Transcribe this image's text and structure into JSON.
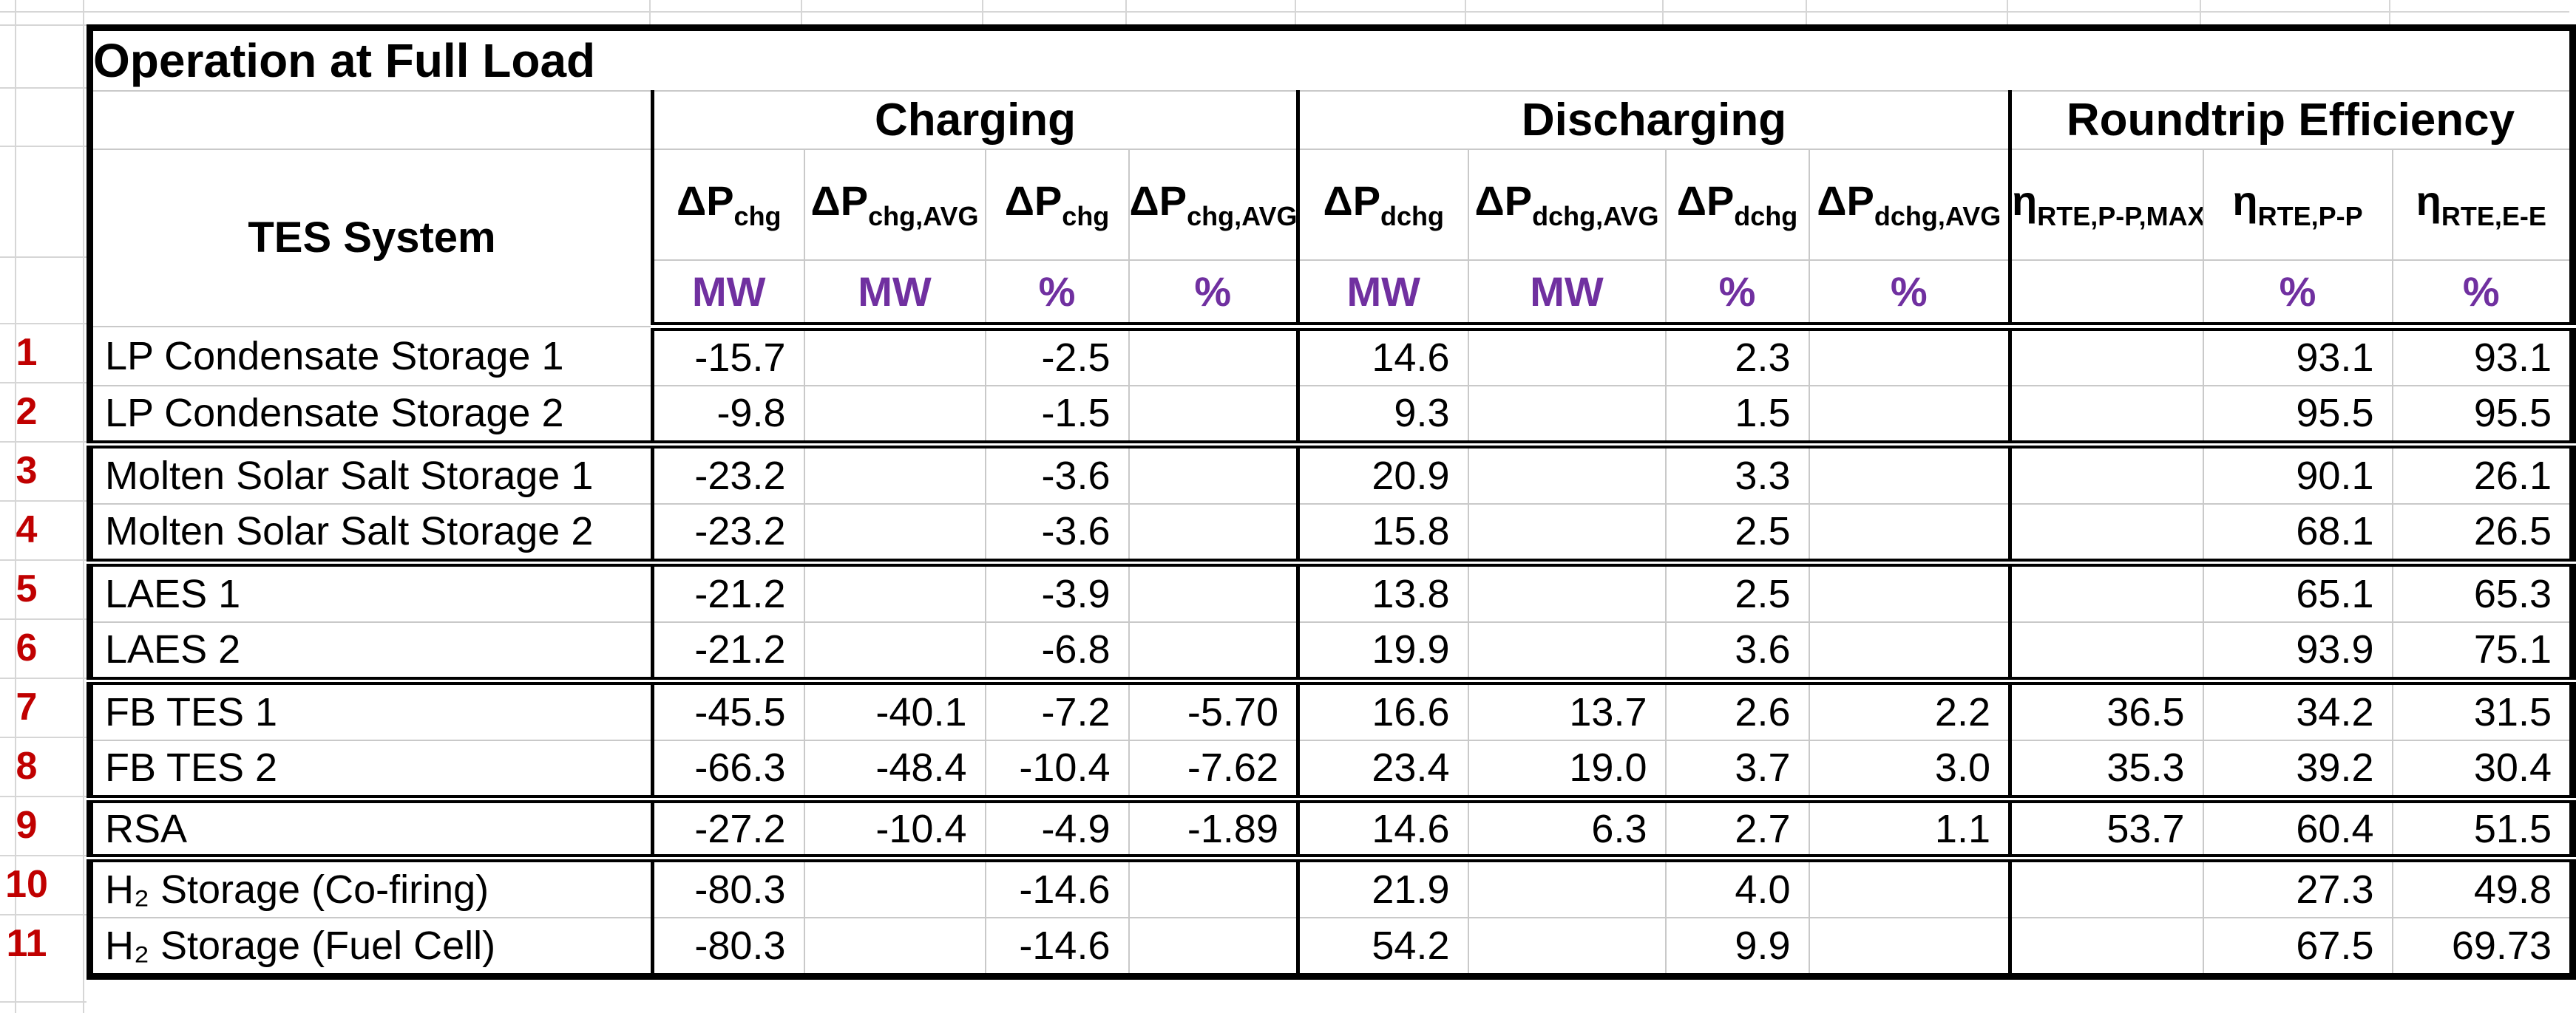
{
  "title": "Operation at Full Load",
  "colors": {
    "title_highlight": "#FFFF00",
    "unit_text": "#7030A0",
    "row_number_text": "#C00000",
    "empty_cell_fill": "#DCE8F5",
    "border_heavy": "#000000",
    "gridline": "#D6D6D6"
  },
  "table": {
    "corner_label": "TES System",
    "groups": [
      {
        "label": "Charging"
      },
      {
        "label": "Discharging"
      },
      {
        "label": "Roundtrip Efficiency"
      }
    ],
    "columns": [
      {
        "base": "ΔP",
        "sub": "chg",
        "unit": "MW"
      },
      {
        "base": "ΔP",
        "sub": "chg,AVG",
        "unit": "MW"
      },
      {
        "base": "ΔP",
        "sub": "chg",
        "unit": "%"
      },
      {
        "base": "ΔP",
        "sub": "chg,AVG",
        "unit": "%"
      },
      {
        "base": "ΔP",
        "sub": "dchg",
        "unit": "MW"
      },
      {
        "base": "ΔP",
        "sub": "dchg,AVG",
        "unit": "MW"
      },
      {
        "base": "ΔP",
        "sub": "dchg",
        "unit": "%"
      },
      {
        "base": "ΔP",
        "sub": "dchg,AVG",
        "unit": "%"
      },
      {
        "base": "η",
        "sub": "RTE,P-P,MAX",
        "unit": ""
      },
      {
        "base": "η",
        "sub": "RTE,P-P",
        "unit": "%"
      },
      {
        "base": "η",
        "sub": "RTE,E-E",
        "unit": "%"
      }
    ],
    "rows": [
      {
        "num": "1",
        "name": "LP Condensate Storage 1",
        "values": [
          "-15.7",
          "",
          "-2.5",
          "",
          "14.6",
          "",
          "2.3",
          "",
          "",
          "93.1",
          "93.1"
        ],
        "group_end": false
      },
      {
        "num": "2",
        "name": "LP Condensate Storage 2",
        "values": [
          "-9.8",
          "",
          "-1.5",
          "",
          "9.3",
          "",
          "1.5",
          "",
          "",
          "95.5",
          "95.5"
        ],
        "group_end": true
      },
      {
        "num": "3",
        "name": "Molten Solar Salt Storage 1",
        "values": [
          "-23.2",
          "",
          "-3.6",
          "",
          "20.9",
          "",
          "3.3",
          "",
          "",
          "90.1",
          "26.1"
        ],
        "group_end": false
      },
      {
        "num": "4",
        "name": "Molten Solar Salt Storage 2",
        "values": [
          "-23.2",
          "",
          "-3.6",
          "",
          "15.8",
          "",
          "2.5",
          "",
          "",
          "68.1",
          "26.5"
        ],
        "group_end": true
      },
      {
        "num": "5",
        "name": "LAES 1",
        "values": [
          "-21.2",
          "",
          "-3.9",
          "",
          "13.8",
          "",
          "2.5",
          "",
          "",
          "65.1",
          "65.3"
        ],
        "group_end": false
      },
      {
        "num": "6",
        "name": "LAES 2",
        "values": [
          "-21.2",
          "",
          "-6.8",
          "",
          "19.9",
          "",
          "3.6",
          "",
          "",
          "93.9",
          "75.1"
        ],
        "group_end": true
      },
      {
        "num": "7",
        "name": "FB TES 1",
        "values": [
          "-45.5",
          "-40.1",
          "-7.2",
          "-5.70",
          "16.6",
          "13.7",
          "2.6",
          "2.2",
          "36.5",
          "34.2",
          "31.5"
        ],
        "group_end": false
      },
      {
        "num": "8",
        "name": "FB TES 2",
        "values": [
          "-66.3",
          "-48.4",
          "-10.4",
          "-7.62",
          "23.4",
          "19.0",
          "3.7",
          "3.0",
          "35.3",
          "39.2",
          "30.4"
        ],
        "group_end": true
      },
      {
        "num": "9",
        "name": "RSA",
        "values": [
          "-27.2",
          "-10.4",
          "-4.9",
          "-1.89",
          "14.6",
          "6.3",
          "2.7",
          "1.1",
          "53.7",
          "60.4",
          "51.5"
        ],
        "group_end": true
      },
      {
        "num": "10",
        "name": "H₂ Storage (Co-firing)",
        "values": [
          "-80.3",
          "",
          "-14.6",
          "",
          "21.9",
          "",
          "4.0",
          "",
          "",
          "27.3",
          "49.8"
        ],
        "group_end": false
      },
      {
        "num": "11",
        "name": "H₂ Storage (Fuel Cell)",
        "values": [
          "-80.3",
          "",
          "-14.6",
          "",
          "54.2",
          "",
          "9.9",
          "",
          "",
          "67.5",
          "69.73"
        ],
        "group_end": false
      }
    ]
  }
}
